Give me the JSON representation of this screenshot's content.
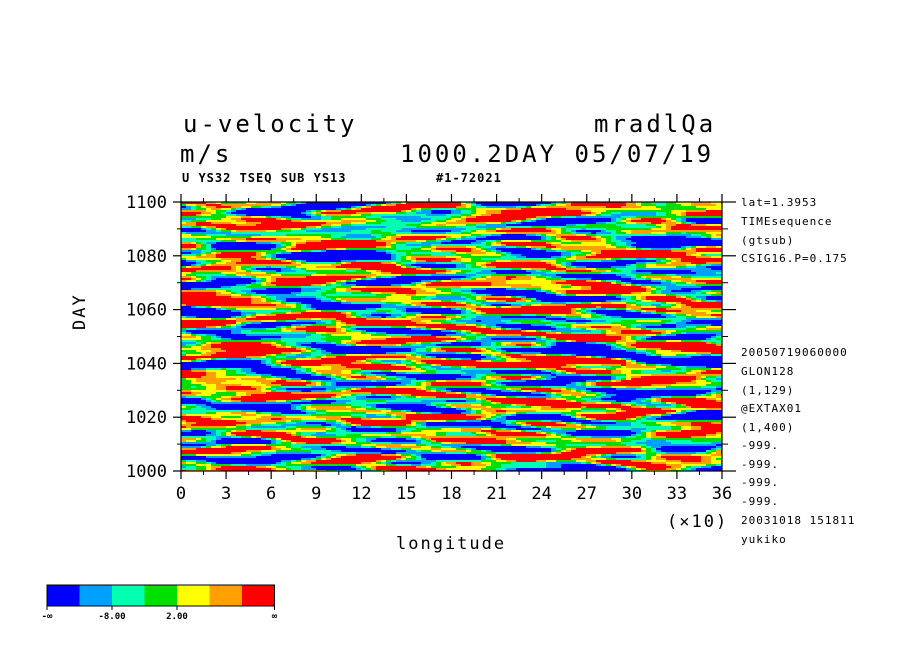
{
  "header": {
    "title": "u-velocity",
    "units": "m/s",
    "run_name": "mradlQa",
    "time_label": "1000.2DAY 05/07/19",
    "var_code": "U YS32 TSEQ SUB YS13",
    "run_id": "#1-72021"
  },
  "side_info_top": [
    "lat=1.3953",
    "TIMEsequence",
    "(gtsub)",
    "CSIG16.P=0.175"
  ],
  "side_info_bottom": [
    "20050719060000",
    "GLON128",
    "(1,129)",
    "@EXTAX01",
    "(1,400)",
    "-999.",
    "-999.",
    "-999.",
    "-999.",
    "20031018 151811",
    "yukiko"
  ],
  "axes": {
    "xlabel": "longitude",
    "ylabel": "DAY",
    "x_multiplier": "(×10)"
  },
  "colorbar": {
    "colors": [
      "#0000ff",
      "#00a0ff",
      "#00ffb0",
      "#00e000",
      "#ffff00",
      "#ffa000",
      "#ff0000"
    ],
    "labels": [
      "-∞",
      "-8.00",
      "2.00",
      "∞"
    ]
  },
  "chart_data": {
    "type": "heatmap",
    "title": "u-velocity",
    "xlabel": "longitude",
    "ylabel": "DAY",
    "x_ticks": [
      0,
      3,
      6,
      9,
      12,
      15,
      18,
      21,
      24,
      27,
      30,
      33,
      36
    ],
    "y_ticks": [
      1000,
      1020,
      1040,
      1060,
      1080,
      1100
    ],
    "x_ticks_display": [
      "0",
      "3",
      "6",
      "9",
      "12",
      "15",
      "18",
      "21",
      "24",
      "27",
      "30",
      "33",
      "36"
    ],
    "y_ticks_display": [
      "1000",
      "1020",
      "1040",
      "1060",
      "1080",
      "1100"
    ],
    "xlim": [
      0,
      36
    ],
    "ylim": [
      1000,
      1100
    ],
    "units": "m/s",
    "color_levels": [
      "-∞",
      "-8.00",
      "2.00",
      "∞"
    ]
  }
}
